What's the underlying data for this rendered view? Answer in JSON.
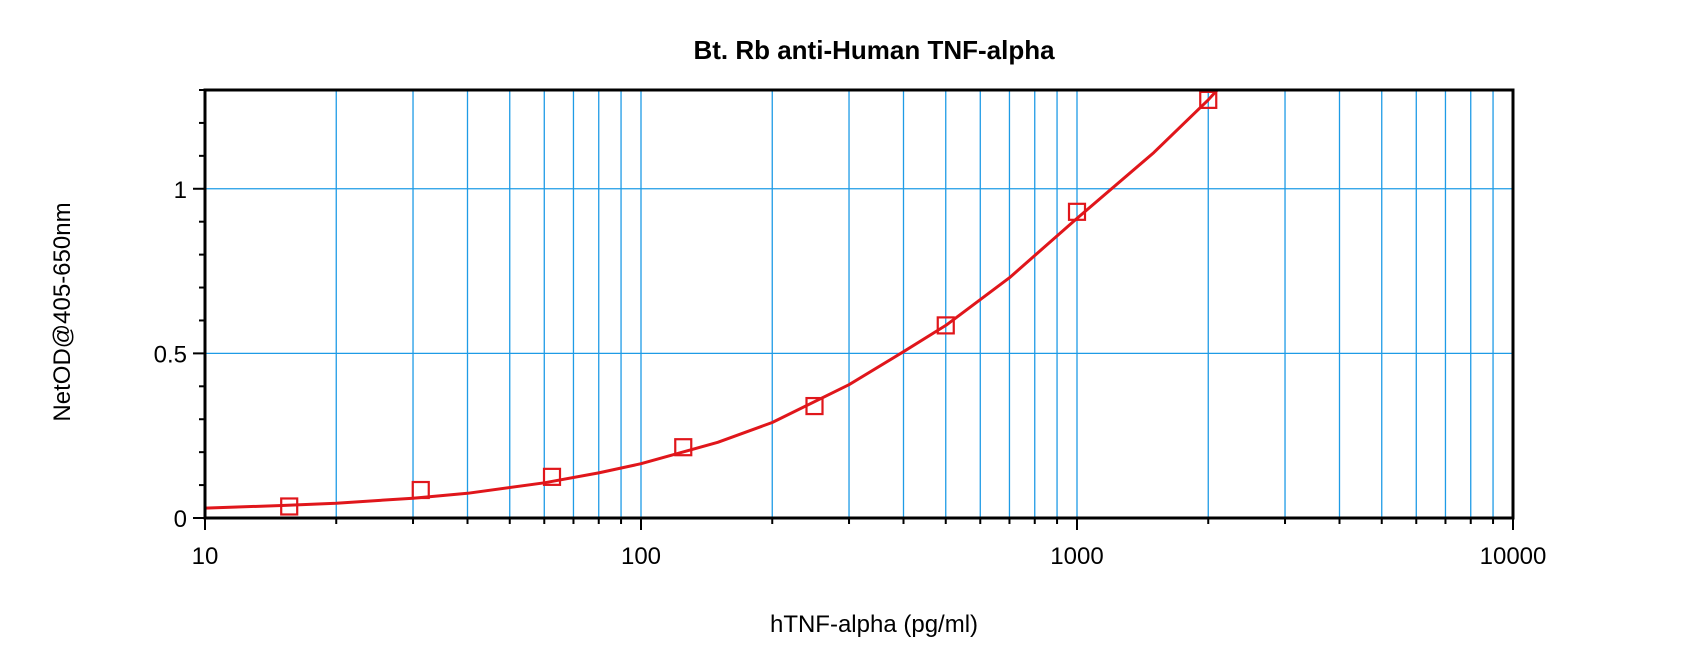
{
  "chart_data": {
    "type": "scatter",
    "title": "Bt. Rb anti-Human TNF-alpha",
    "xlabel": "hTNF-alpha (pg/ml)",
    "ylabel": "NetOD@405-650nm",
    "xscale": "log",
    "xlim": [
      10,
      10000
    ],
    "ylim": [
      0,
      1.3
    ],
    "x_ticks": [
      10,
      100,
      1000,
      10000
    ],
    "x_tick_labels": [
      "10",
      "100",
      "1000",
      "10000"
    ],
    "y_ticks": [
      0,
      0.5,
      1
    ],
    "y_tick_labels": [
      "0",
      "0.5",
      "1"
    ],
    "grid": true,
    "series": [
      {
        "x": [
          15.6,
          31.25,
          62.5,
          125,
          250,
          500,
          1000,
          2000
        ],
        "y": [
          0.035,
          0.085,
          0.125,
          0.215,
          0.34,
          0.585,
          0.93,
          1.27
        ],
        "marker": "square",
        "color": "#e0161b"
      }
    ],
    "fit_curve": {
      "x": [
        10,
        15,
        20,
        30,
        40,
        60,
        80,
        100,
        150,
        200,
        300,
        400,
        500,
        700,
        1000,
        1500,
        2000,
        2200
      ],
      "y": [
        0.03,
        0.038,
        0.045,
        0.06,
        0.075,
        0.107,
        0.137,
        0.165,
        0.23,
        0.29,
        0.405,
        0.505,
        0.585,
        0.73,
        0.91,
        1.11,
        1.27,
        1.33
      ],
      "color": "#e0161b"
    },
    "colors": {
      "grid": "#1e9be6",
      "axis": "#000000",
      "series": "#e0161b"
    }
  }
}
